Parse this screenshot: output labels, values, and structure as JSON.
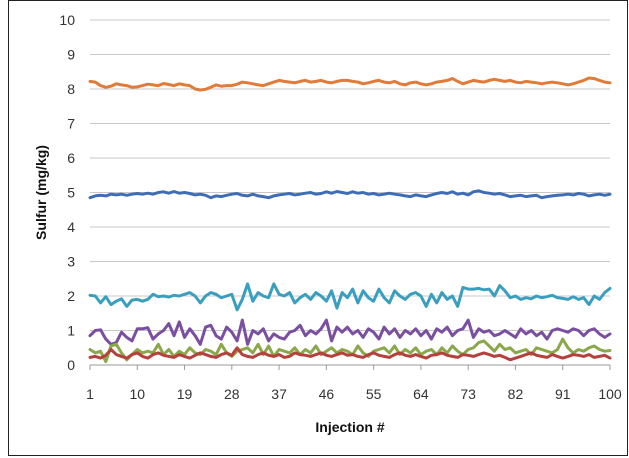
{
  "chart_data": {
    "type": "line",
    "title": "",
    "xlabel": "Injection #",
    "ylabel": "Sulfur (mg/kg)",
    "ylim": [
      0,
      10
    ],
    "yticks": [
      0,
      1,
      2,
      3,
      4,
      5,
      6,
      7,
      8,
      9,
      10
    ],
    "xlim": [
      1,
      100
    ],
    "xticks": [
      1,
      10,
      19,
      28,
      37,
      46,
      55,
      64,
      73,
      82,
      91,
      100
    ],
    "grid": true,
    "legend": "none",
    "series": [
      {
        "color": "#e07b39",
        "values": [
          8.22,
          8.2,
          8.1,
          8.05,
          8.08,
          8.15,
          8.12,
          8.1,
          8.05,
          8.06,
          8.1,
          8.14,
          8.12,
          8.1,
          8.16,
          8.13,
          8.1,
          8.15,
          8.12,
          8.1,
          8.0,
          7.97,
          7.99,
          8.05,
          8.12,
          8.08,
          8.1,
          8.1,
          8.14,
          8.2,
          8.18,
          8.15,
          8.12,
          8.1,
          8.15,
          8.2,
          8.25,
          8.22,
          8.2,
          8.18,
          8.22,
          8.25,
          8.2,
          8.22,
          8.25,
          8.2,
          8.18,
          8.22,
          8.25,
          8.25,
          8.22,
          8.2,
          8.15,
          8.18,
          8.22,
          8.25,
          8.2,
          8.18,
          8.22,
          8.15,
          8.12,
          8.18,
          8.2,
          8.15,
          8.12,
          8.15,
          8.2,
          8.22,
          8.25,
          8.3,
          8.22,
          8.15,
          8.2,
          8.25,
          8.22,
          8.2,
          8.25,
          8.28,
          8.25,
          8.22,
          8.25,
          8.2,
          8.18,
          8.22,
          8.2,
          8.18,
          8.15,
          8.18,
          8.2,
          8.18,
          8.15,
          8.12,
          8.15,
          8.2,
          8.25,
          8.32,
          8.3,
          8.25,
          8.2,
          8.18
        ]
      },
      {
        "color": "#3e6db5",
        "values": [
          4.85,
          4.9,
          4.92,
          4.9,
          4.95,
          4.93,
          4.95,
          4.92,
          4.95,
          4.97,
          4.95,
          4.98,
          4.95,
          5.0,
          5.02,
          4.98,
          5.03,
          4.98,
          5.0,
          4.97,
          4.93,
          4.95,
          4.92,
          4.85,
          4.9,
          4.88,
          4.92,
          4.95,
          4.97,
          4.92,
          4.9,
          4.95,
          4.9,
          4.88,
          4.85,
          4.9,
          4.93,
          4.95,
          4.97,
          4.93,
          4.95,
          4.98,
          5.0,
          4.95,
          4.97,
          5.02,
          4.98,
          5.03,
          5.0,
          4.97,
          5.02,
          4.98,
          5.0,
          4.95,
          4.97,
          4.93,
          4.95,
          4.98,
          4.95,
          4.93,
          4.9,
          4.88,
          4.93,
          4.9,
          4.88,
          4.93,
          4.97,
          5.0,
          4.97,
          5.02,
          4.95,
          4.98,
          4.93,
          5.02,
          5.05,
          5.0,
          4.98,
          4.95,
          4.97,
          4.93,
          4.88,
          4.9,
          4.92,
          4.88,
          4.9,
          4.92,
          4.85,
          4.88,
          4.9,
          4.92,
          4.93,
          4.95,
          4.93,
          4.97,
          4.95,
          4.9,
          4.93,
          4.95,
          4.92,
          4.95
        ]
      },
      {
        "color": "#3a9fbf",
        "values": [
          2.02,
          2.0,
          1.8,
          1.98,
          1.75,
          1.85,
          1.92,
          1.7,
          1.88,
          1.9,
          1.85,
          1.9,
          2.05,
          1.98,
          2.0,
          1.97,
          2.02,
          2.0,
          2.05,
          2.1,
          2.0,
          1.8,
          2.0,
          2.1,
          2.05,
          1.95,
          2.0,
          2.05,
          1.6,
          1.9,
          2.35,
          1.85,
          2.1,
          2.0,
          1.95,
          2.35,
          2.05,
          2.0,
          2.1,
          1.8,
          1.95,
          2.05,
          1.9,
          2.1,
          2.0,
          1.85,
          2.15,
          1.65,
          2.1,
          1.95,
          2.2,
          1.8,
          2.15,
          1.95,
          1.85,
          2.2,
          1.95,
          1.8,
          2.15,
          2.0,
          1.9,
          2.05,
          2.1,
          2.0,
          1.7,
          2.05,
          1.8,
          2.1,
          1.9,
          2.0,
          1.7,
          2.25,
          2.2,
          2.2,
          2.22,
          2.18,
          2.2,
          2.0,
          2.3,
          2.15,
          1.95,
          2.0,
          1.9,
          1.95,
          1.92,
          2.0,
          1.95,
          1.98,
          2.02,
          1.95,
          1.93,
          1.9,
          1.98,
          1.9,
          1.95,
          1.75,
          2.0,
          1.9,
          2.1,
          2.22
        ]
      },
      {
        "color": "#7b4fa0",
        "values": [
          0.85,
          1.0,
          1.02,
          0.75,
          0.6,
          0.65,
          0.95,
          0.8,
          0.7,
          1.05,
          1.05,
          1.08,
          0.75,
          0.9,
          1.0,
          1.2,
          0.85,
          1.25,
          0.8,
          1.05,
          0.85,
          0.6,
          1.1,
          1.15,
          0.85,
          0.75,
          1.1,
          0.95,
          0.7,
          1.3,
          0.6,
          1.0,
          0.9,
          1.05,
          0.7,
          0.9,
          0.8,
          0.75,
          0.95,
          1.0,
          1.15,
          0.85,
          1.0,
          0.9,
          1.05,
          1.3,
          0.7,
          1.1,
          0.95,
          1.1,
          0.9,
          1.0,
          0.8,
          1.05,
          0.95,
          0.75,
          1.1,
          0.9,
          1.05,
          0.8,
          1.0,
          0.9,
          1.05,
          0.85,
          1.0,
          0.75,
          1.05,
          0.95,
          1.1,
          0.85,
          1.0,
          1.05,
          1.3,
          0.8,
          1.05,
          0.95,
          1.0,
          0.85,
          0.9,
          1.0,
          0.9,
          0.8,
          1.05,
          0.9,
          1.0,
          0.85,
          0.95,
          0.75,
          1.0,
          1.05,
          1.0,
          0.95,
          1.05,
          1.0,
          0.85,
          1.0,
          1.05,
          0.9,
          0.8,
          0.9
        ]
      },
      {
        "color": "#8aa84a",
        "values": [
          0.45,
          0.35,
          0.4,
          0.1,
          0.55,
          0.6,
          0.35,
          0.15,
          0.3,
          0.45,
          0.35,
          0.4,
          0.35,
          0.6,
          0.3,
          0.45,
          0.25,
          0.4,
          0.3,
          0.5,
          0.35,
          0.3,
          0.45,
          0.4,
          0.3,
          0.6,
          0.35,
          0.25,
          0.4,
          0.45,
          0.5,
          0.35,
          0.6,
          0.3,
          0.55,
          0.25,
          0.45,
          0.4,
          0.35,
          0.5,
          0.3,
          0.45,
          0.35,
          0.55,
          0.3,
          0.4,
          0.5,
          0.35,
          0.45,
          0.4,
          0.3,
          0.55,
          0.35,
          0.25,
          0.4,
          0.45,
          0.5,
          0.35,
          0.55,
          0.3,
          0.45,
          0.35,
          0.5,
          0.3,
          0.4,
          0.45,
          0.3,
          0.5,
          0.35,
          0.55,
          0.4,
          0.3,
          0.45,
          0.5,
          0.65,
          0.7,
          0.55,
          0.4,
          0.6,
          0.45,
          0.5,
          0.35,
          0.4,
          0.45,
          0.3,
          0.5,
          0.45,
          0.4,
          0.35,
          0.45,
          0.75,
          0.5,
          0.35,
          0.45,
          0.4,
          0.5,
          0.55,
          0.45,
          0.4,
          0.42
        ]
      },
      {
        "color": "#b5413d",
        "values": [
          0.22,
          0.25,
          0.2,
          0.28,
          0.45,
          0.3,
          0.25,
          0.2,
          0.3,
          0.35,
          0.25,
          0.2,
          0.3,
          0.35,
          0.28,
          0.25,
          0.22,
          0.3,
          0.25,
          0.2,
          0.28,
          0.35,
          0.3,
          0.25,
          0.22,
          0.3,
          0.35,
          0.28,
          0.5,
          0.3,
          0.25,
          0.22,
          0.3,
          0.35,
          0.28,
          0.25,
          0.3,
          0.22,
          0.25,
          0.35,
          0.3,
          0.28,
          0.25,
          0.3,
          0.35,
          0.28,
          0.25,
          0.3,
          0.35,
          0.28,
          0.3,
          0.25,
          0.22,
          0.3,
          0.35,
          0.28,
          0.25,
          0.22,
          0.3,
          0.35,
          0.28,
          0.25,
          0.3,
          0.25,
          0.2,
          0.28,
          0.3,
          0.35,
          0.28,
          0.25,
          0.22,
          0.3,
          0.28,
          0.25,
          0.3,
          0.35,
          0.3,
          0.25,
          0.28,
          0.22,
          0.15,
          0.2,
          0.25,
          0.3,
          0.35,
          0.28,
          0.25,
          0.22,
          0.3,
          0.25,
          0.2,
          0.25,
          0.3,
          0.28,
          0.25,
          0.3,
          0.22,
          0.25,
          0.28,
          0.2
        ]
      }
    ]
  }
}
